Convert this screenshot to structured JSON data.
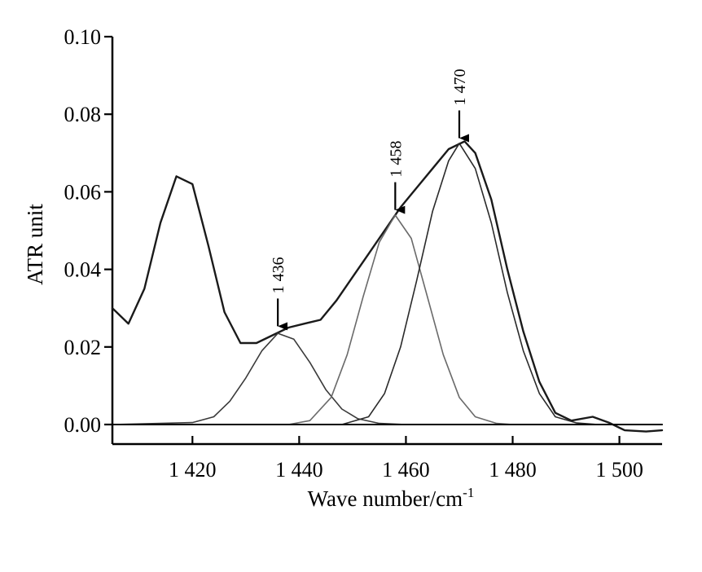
{
  "chart_data": {
    "type": "line",
    "title": "",
    "xlabel": "Wave number/cm",
    "xlabel_superscript": "-1",
    "ylabel": "ATR unit",
    "xlim": [
      1405,
      1508
    ],
    "ylim": [
      0,
      0.1
    ],
    "grid": false,
    "legend": "none",
    "x_ticks": [
      {
        "value": 1420,
        "label": "1 420"
      },
      {
        "value": 1440,
        "label": "1 440"
      },
      {
        "value": 1460,
        "label": "1 460"
      },
      {
        "value": 1480,
        "label": "1 480"
      },
      {
        "value": 1500,
        "label": "1 500"
      }
    ],
    "y_ticks": [
      {
        "value": 0.0,
        "label": "0.00"
      },
      {
        "value": 0.02,
        "label": "0.02"
      },
      {
        "value": 0.04,
        "label": "0.04"
      },
      {
        "value": 0.06,
        "label": "0.06"
      },
      {
        "value": 0.08,
        "label": "0.08"
      },
      {
        "value": 0.1,
        "label": "0.10"
      }
    ],
    "series": [
      {
        "color": "#1a1a1a",
        "width": 2.4,
        "points": [
          [
            1405,
            0.03
          ],
          [
            1408,
            0.026
          ],
          [
            1411,
            0.035
          ],
          [
            1414,
            0.052
          ],
          [
            1417,
            0.064
          ],
          [
            1420,
            0.062
          ],
          [
            1423,
            0.046
          ],
          [
            1426,
            0.029
          ],
          [
            1429,
            0.021
          ],
          [
            1432,
            0.021
          ],
          [
            1435,
            0.023
          ],
          [
            1438,
            0.025
          ],
          [
            1441,
            0.026
          ],
          [
            1444,
            0.027
          ],
          [
            1447,
            0.032
          ],
          [
            1450,
            0.038
          ],
          [
            1453,
            0.044
          ],
          [
            1456,
            0.05
          ],
          [
            1459,
            0.056
          ],
          [
            1462,
            0.061
          ],
          [
            1465,
            0.066
          ],
          [
            1468,
            0.071
          ],
          [
            1471,
            0.073
          ],
          [
            1473,
            0.07
          ],
          [
            1476,
            0.058
          ],
          [
            1479,
            0.04
          ],
          [
            1482,
            0.024
          ],
          [
            1485,
            0.011
          ],
          [
            1488,
            0.003
          ],
          [
            1491,
            0.001
          ],
          [
            1495,
            0.002
          ],
          [
            1498,
            0.0005
          ],
          [
            1501,
            -0.0015
          ],
          [
            1505,
            -0.0018
          ],
          [
            1508,
            -0.0015
          ]
        ]
      },
      {
        "color": "#3a3a3a",
        "width": 1.6,
        "points": [
          [
            1405,
            0.0
          ],
          [
            1420,
            0.0005
          ],
          [
            1424,
            0.002
          ],
          [
            1427,
            0.006
          ],
          [
            1430,
            0.012
          ],
          [
            1433,
            0.019
          ],
          [
            1436,
            0.0235
          ],
          [
            1439,
            0.022
          ],
          [
            1442,
            0.016
          ],
          [
            1445,
            0.009
          ],
          [
            1448,
            0.004
          ],
          [
            1451,
            0.0015
          ],
          [
            1455,
            0.0003
          ],
          [
            1460,
            0.0
          ],
          [
            1508,
            0.0
          ]
        ]
      },
      {
        "color": "#6a6a6a",
        "width": 1.6,
        "points": [
          [
            1405,
            0.0
          ],
          [
            1438,
            0.0
          ],
          [
            1442,
            0.001
          ],
          [
            1446,
            0.007
          ],
          [
            1449,
            0.018
          ],
          [
            1452,
            0.033
          ],
          [
            1455,
            0.047
          ],
          [
            1458,
            0.054
          ],
          [
            1461,
            0.048
          ],
          [
            1464,
            0.033
          ],
          [
            1467,
            0.018
          ],
          [
            1470,
            0.007
          ],
          [
            1473,
            0.002
          ],
          [
            1477,
            0.0003
          ],
          [
            1480,
            0.0
          ],
          [
            1508,
            0.0
          ]
        ]
      },
      {
        "color": "#2a2a2a",
        "width": 1.6,
        "points": [
          [
            1405,
            0.0
          ],
          [
            1448,
            0.0
          ],
          [
            1453,
            0.002
          ],
          [
            1456,
            0.008
          ],
          [
            1459,
            0.02
          ],
          [
            1462,
            0.037
          ],
          [
            1465,
            0.055
          ],
          [
            1468,
            0.068
          ],
          [
            1470,
            0.0725
          ],
          [
            1473,
            0.066
          ],
          [
            1476,
            0.052
          ],
          [
            1479,
            0.034
          ],
          [
            1482,
            0.019
          ],
          [
            1485,
            0.008
          ],
          [
            1488,
            0.002
          ],
          [
            1492,
            0.0004
          ],
          [
            1496,
            0.0
          ],
          [
            1508,
            0.0
          ]
        ]
      },
      {
        "color": "#000000",
        "width": 2,
        "points": [
          [
            1405,
            0.0
          ],
          [
            1508,
            0.0
          ]
        ]
      }
    ],
    "annotations": [
      {
        "label": "1 436",
        "x": 1436,
        "y": 0.0245
      },
      {
        "label": "1 458",
        "x": 1458,
        "y": 0.0545
      },
      {
        "label": "1 470",
        "x": 1470,
        "y": 0.073
      }
    ]
  }
}
